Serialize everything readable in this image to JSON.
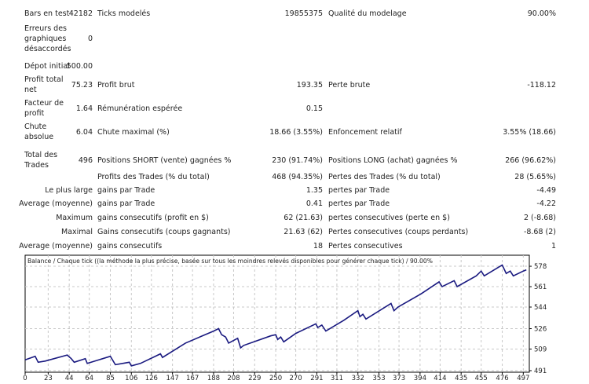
{
  "report": {
    "rows": [
      {
        "l1": "Bars en test",
        "v1": "42182",
        "l2": "Ticks modelés",
        "v2": "19855375",
        "l3": "Qualité du modelage",
        "v3": "90.00%"
      },
      {
        "l1": "Erreurs des graphiques désaccordés",
        "v1": "0",
        "l2": "",
        "v2": "",
        "l3": "",
        "v3": ""
      },
      {
        "l1": "Dépot initial",
        "v1": "500.00",
        "l2": "",
        "v2": "",
        "l3": "",
        "v3": ""
      },
      {
        "l1": "Profit total net",
        "v1": "75.23",
        "l2": "Profit brut",
        "v2": "193.35",
        "l3": "Perte brute",
        "v3": "-118.12"
      },
      {
        "l1": "Facteur de profit",
        "v1": "1.64",
        "l2": "Rémunération espérée",
        "v2": "0.15",
        "l3": "",
        "v3": ""
      },
      {
        "l1": "Chute absolue",
        "v1": "6.04",
        "l2": "Chute maximal (%)",
        "v2": "18.66 (3.55%)",
        "l3": "Enfoncement relatif",
        "v3": "3.55% (18.66)"
      },
      {
        "l1": "Total des Trades",
        "v1": "496",
        "l2": "Positions SHORT (vente) gagnées %",
        "v2": "230 (91.74%)",
        "l3": "Positions LONG (achat) gagnées %",
        "v3": "266 (96.62%)"
      },
      {
        "l1": "",
        "v1": "",
        "l2": "Profits des Trades (% du total)",
        "v2": "468 (94.35%)",
        "l3": "Pertes des Trades (% du total)",
        "v3": "28 (5.65%)"
      },
      {
        "l1": "",
        "v1": "Le plus large",
        "l2": "gains par Trade",
        "v2": "1.35",
        "l3": "pertes par Trade",
        "v3": "-4.49"
      },
      {
        "l1": "",
        "v1": "Average (moyenne)",
        "l2": "gains par Trade",
        "v2": "0.41",
        "l3": "pertes par Trade",
        "v3": "-4.22"
      },
      {
        "l1": "",
        "v1": "Maximum",
        "l2": "gains consecutifs (profit en $)",
        "v2": "62 (21.63)",
        "l3": "pertes consecutives (perte en $)",
        "v3": "2 (-8.68)"
      },
      {
        "l1": "",
        "v1": "Maximal",
        "l2": "Gains consecutifs (coups gagnants)",
        "v2": "21.63 (62)",
        "l3": "Pertes consecutives (coups perdants)",
        "v3": "-8.68 (2)"
      },
      {
        "l1": "",
        "v1": "Average (moyenne)",
        "l2": "gains consecutifs",
        "v2": "18",
        "l3": "Pertes consecutives",
        "v3": "1"
      }
    ]
  },
  "chart_data": {
    "type": "line",
    "title": "Balance / Chaque tick ((la méthode la plus précise, basée sur tous les moindres relevés disponibles pour générer chaque tick) / 90.00%",
    "line_color": "#1a1a80",
    "grid": true,
    "xlim": [
      0,
      503
    ],
    "ylim": [
      489.7,
      587.2
    ],
    "x_ticks": [
      "0",
      "23",
      "44",
      "64",
      "85",
      "106",
      "126",
      "147",
      "167",
      "188",
      "208",
      "229",
      "250",
      "270",
      "291",
      "311",
      "332",
      "353",
      "373",
      "394",
      "414",
      "435",
      "455",
      "476",
      "497"
    ],
    "y_ticks": [
      "578",
      "561",
      "544",
      "526",
      "509",
      "491"
    ],
    "x": [
      0,
      10,
      13,
      20,
      42,
      46,
      49,
      60,
      62,
      85,
      90,
      104,
      106,
      115,
      135,
      137,
      160,
      188,
      193,
      196,
      200,
      203,
      212,
      215,
      218,
      245,
      250,
      252,
      255,
      258,
      270,
      290,
      292,
      296,
      300,
      318,
      332,
      334,
      337,
      340,
      365,
      368,
      372,
      395,
      413,
      416,
      428,
      431,
      450,
      455,
      458,
      476,
      480,
      484,
      487,
      497,
      500
    ],
    "y": [
      500,
      503,
      498,
      499,
      504,
      501,
      498,
      501,
      497,
      503,
      496,
      498,
      495,
      497,
      505,
      502,
      514,
      524,
      526,
      521,
      519,
      514,
      518,
      510,
      512,
      520,
      521,
      517,
      519,
      515,
      522,
      530,
      527,
      529,
      524,
      533,
      541,
      536,
      538,
      534,
      547,
      541,
      544,
      555,
      565,
      561,
      566,
      561,
      570,
      574,
      570,
      579,
      572,
      574,
      570,
      574,
      575
    ]
  }
}
